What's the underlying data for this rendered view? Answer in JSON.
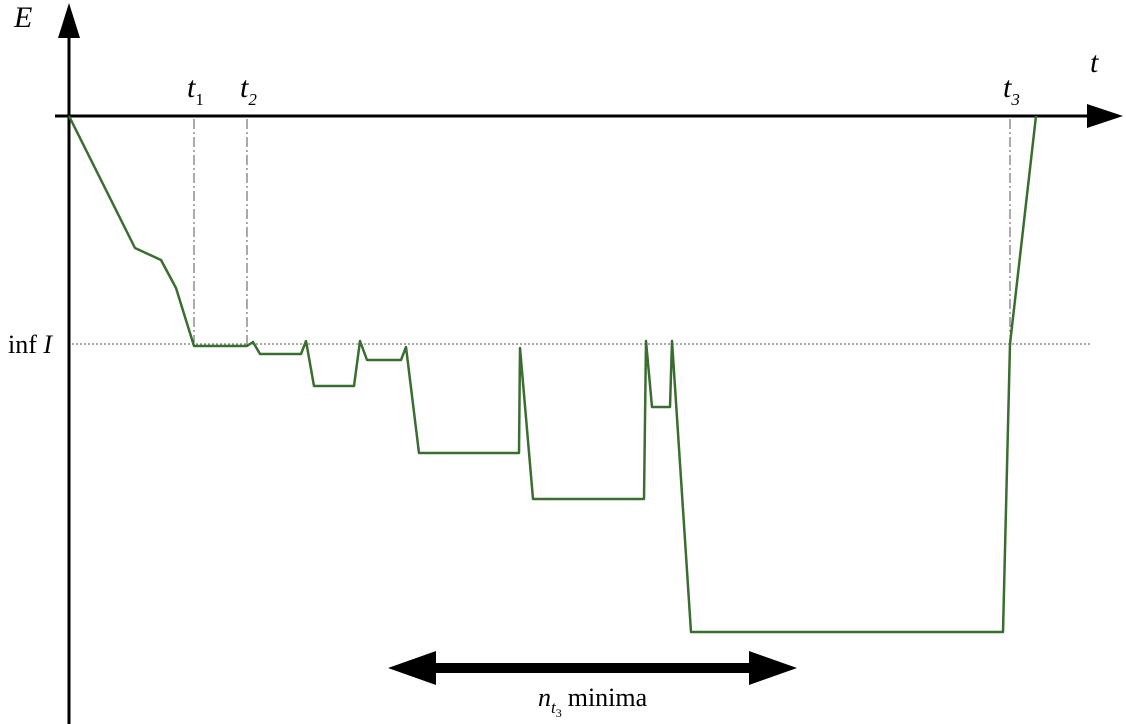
{
  "axes": {
    "y_label": "E",
    "x_label": "t"
  },
  "time_marks": {
    "t1": {
      "base": "t",
      "sub": "1"
    },
    "t2": {
      "base": "t",
      "sub": "2"
    },
    "t3": {
      "base": "t",
      "sub": "3"
    }
  },
  "inf_label": {
    "prefix": "inf",
    "symbol": "I"
  },
  "arrow_label": {
    "base": "n",
    "sub": "t",
    "subsub": "3",
    "suffix": "minima"
  },
  "colors": {
    "curve": "#3a6e30",
    "axes": "#000000",
    "guides": "#555555"
  }
}
